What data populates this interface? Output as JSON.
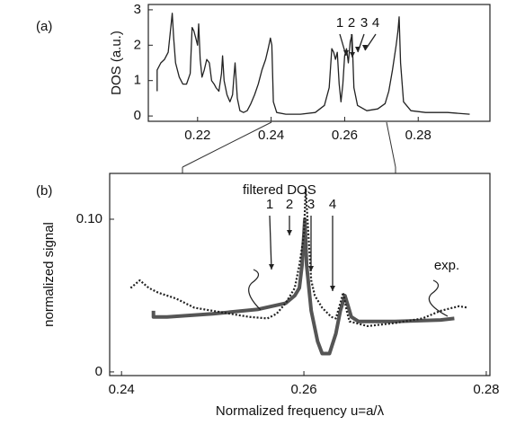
{
  "chart_data": [
    {
      "type": "line",
      "panel_label": "(a)",
      "ylabel": "DOS (a.u.)",
      "xlim": [
        0.2066,
        0.2995
      ],
      "xticks": [
        0.22,
        0.24,
        0.26,
        0.28
      ],
      "ylim": [
        -0.15,
        3.15
      ],
      "yticks": [
        0,
        1,
        2,
        3
      ],
      "annotations": [
        "1",
        "2",
        "3",
        "4"
      ],
      "series": [
        {
          "color": "#222222",
          "style": "solid",
          "x": [
            0.209,
            0.209,
            0.21,
            0.211,
            0.212,
            0.2128,
            0.2131,
            0.2135,
            0.214,
            0.215,
            0.216,
            0.217,
            0.218,
            0.2185,
            0.219,
            0.2195,
            0.22,
            0.2203,
            0.2207,
            0.2212,
            0.2218,
            0.2225,
            0.2232,
            0.2238,
            0.2245,
            0.225,
            0.2258,
            0.2265,
            0.2268,
            0.2272,
            0.228,
            0.2288,
            0.2295,
            0.2298,
            0.2302,
            0.2308,
            0.2315,
            0.2325,
            0.2335,
            0.2345,
            0.2355,
            0.2365,
            0.2375,
            0.2385,
            0.2392,
            0.2398,
            0.2402,
            0.2406,
            0.2415,
            0.244,
            0.248,
            0.252,
            0.2545,
            0.2558,
            0.2565,
            0.257,
            0.2575,
            0.258,
            0.2585,
            0.259,
            0.2595,
            0.26,
            0.2605,
            0.261,
            0.2615,
            0.262,
            0.2625,
            0.2635,
            0.266,
            0.269,
            0.271,
            0.272,
            0.273,
            0.274,
            0.2745,
            0.2748,
            0.2752,
            0.276,
            0.278,
            0.282,
            0.288,
            0.294
          ],
          "values": [
            0.7,
            1.3,
            1.5,
            1.6,
            1.8,
            2.6,
            2.9,
            2.2,
            1.5,
            1.1,
            0.9,
            0.9,
            1.2,
            2.5,
            2.4,
            2.2,
            2.0,
            2.6,
            1.6,
            1.1,
            1.3,
            1.6,
            1.5,
            1.0,
            0.9,
            0.8,
            0.7,
            1.2,
            1.7,
            1.0,
            0.6,
            0.4,
            0.6,
            1.0,
            1.5,
            0.5,
            0.15,
            0.1,
            0.15,
            0.35,
            0.6,
            0.9,
            1.3,
            1.6,
            1.9,
            2.2,
            2.0,
            0.4,
            0.1,
            0.05,
            0.05,
            0.1,
            0.3,
            0.8,
            1.9,
            1.8,
            1.6,
            1.8,
            0.9,
            0.4,
            0.9,
            1.7,
            1.9,
            1.5,
            2.1,
            2.3,
            0.8,
            0.3,
            0.15,
            0.2,
            0.35,
            0.7,
            1.3,
            2.0,
            2.4,
            2.8,
            1.5,
            0.4,
            0.15,
            0.1,
            0.1,
            0.05
          ]
        }
      ]
    },
    {
      "type": "line",
      "panel_label": "(b)",
      "ylabel": "normalized signal",
      "xlabel": "Normalized frequency u=a/λ",
      "xlim": [
        0.2387,
        0.2804
      ],
      "xticks": [
        0.24,
        0.26,
        0.28
      ],
      "ylim": [
        -0.0024,
        0.13
      ],
      "yticks": [
        0,
        {
          "value": 0.1,
          "label": "0.10"
        }
      ],
      "annotations": [
        "1",
        "2",
        "3",
        "4"
      ],
      "series": [
        {
          "name": "filtered DOS",
          "color": "#555555",
          "style": "solid",
          "x": [
            0.2435,
            0.2435,
            0.245,
            0.25,
            0.255,
            0.258,
            0.259,
            0.2595,
            0.2598,
            0.2601,
            0.2603,
            0.2608,
            0.2615,
            0.262,
            0.2628,
            0.2635,
            0.264,
            0.2645,
            0.2648,
            0.2652,
            0.266,
            0.27,
            0.275,
            0.2765
          ],
          "values": [
            0.04,
            0.036,
            0.036,
            0.038,
            0.041,
            0.045,
            0.05,
            0.055,
            0.07,
            0.1,
            0.07,
            0.04,
            0.02,
            0.012,
            0.012,
            0.025,
            0.04,
            0.05,
            0.044,
            0.036,
            0.033,
            0.033,
            0.034,
            0.035
          ]
        },
        {
          "name": "exp.",
          "color": "#222222",
          "style": "dotted",
          "x": [
            0.241,
            0.242,
            0.243,
            0.244,
            0.246,
            0.248,
            0.25,
            0.252,
            0.254,
            0.256,
            0.257,
            0.258,
            0.259,
            0.2595,
            0.26,
            0.2602,
            0.2605,
            0.2608,
            0.2612,
            0.262,
            0.263,
            0.2635,
            0.264,
            0.2643,
            0.2647,
            0.265,
            0.267,
            0.27,
            0.273,
            0.275,
            0.277,
            0.278
          ],
          "values": [
            0.055,
            0.06,
            0.055,
            0.052,
            0.048,
            0.042,
            0.04,
            0.038,
            0.036,
            0.035,
            0.038,
            0.045,
            0.055,
            0.07,
            0.09,
            0.12,
            0.09,
            0.06,
            0.05,
            0.042,
            0.036,
            0.035,
            0.045,
            0.052,
            0.04,
            0.033,
            0.03,
            0.032,
            0.035,
            0.04,
            0.043,
            0.042
          ]
        }
      ]
    }
  ]
}
